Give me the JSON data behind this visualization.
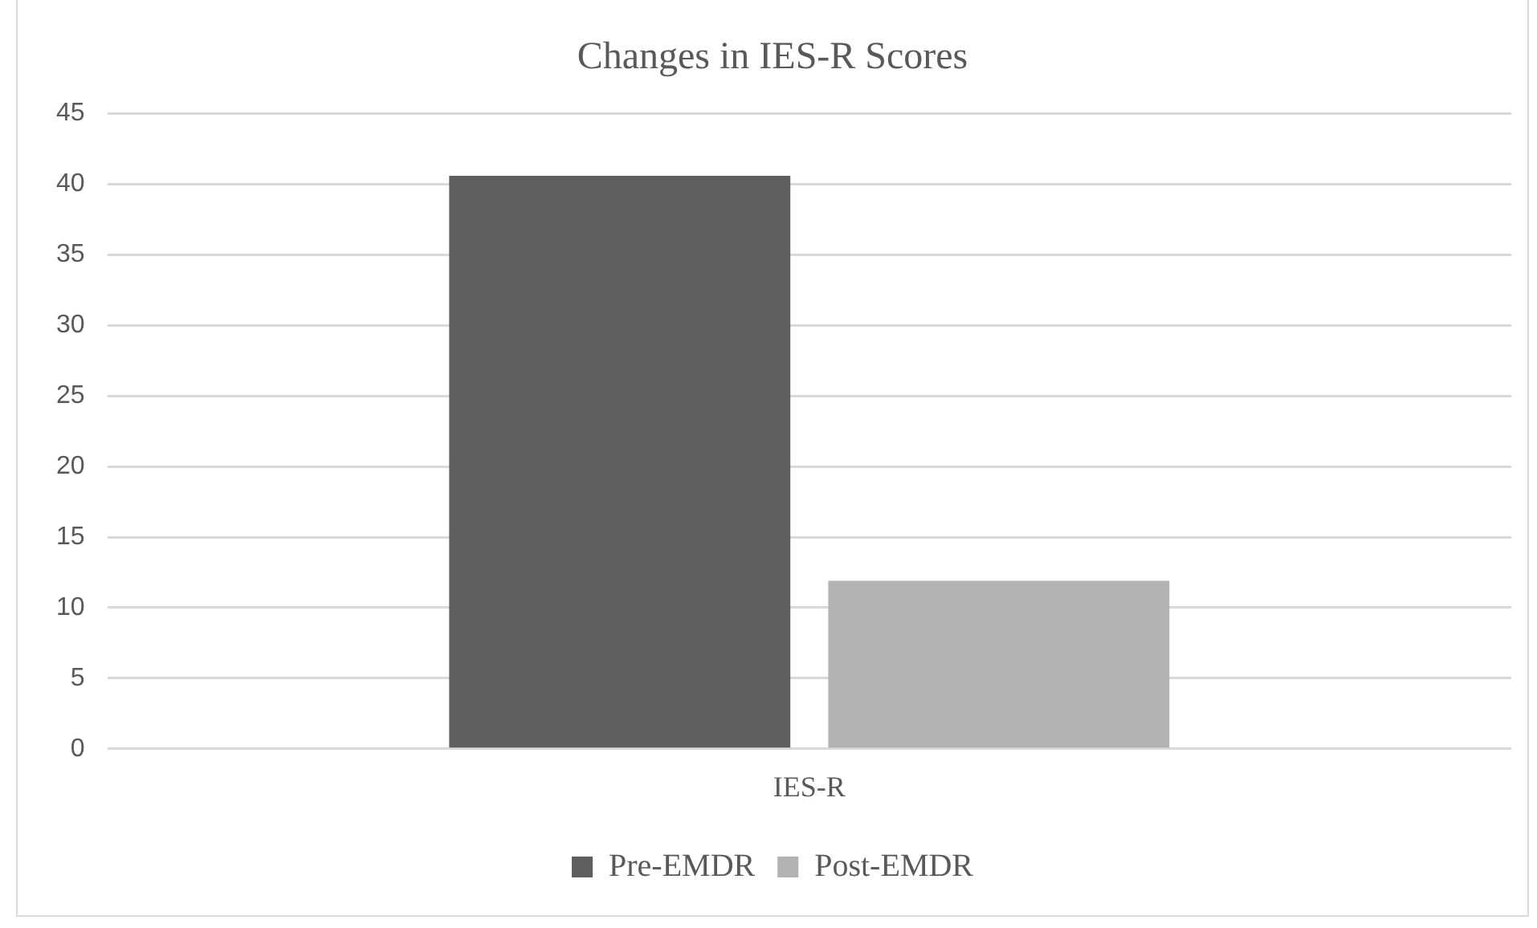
{
  "chart_data": {
    "type": "bar",
    "title": "Changes in IES-R Scores",
    "categories": [
      "IES-R"
    ],
    "series": [
      {
        "name": "Pre-EMDR",
        "color": "#5f5f5f",
        "values": [
          40.6
        ]
      },
      {
        "name": "Post-EMDR",
        "color": "#b2b2b2",
        "values": [
          11.9
        ]
      }
    ],
    "ylim": [
      0,
      45
    ],
    "yticks": [
      0,
      5,
      10,
      15,
      20,
      25,
      30,
      35,
      40,
      45
    ],
    "grid": "y",
    "legend": "bottom"
  }
}
